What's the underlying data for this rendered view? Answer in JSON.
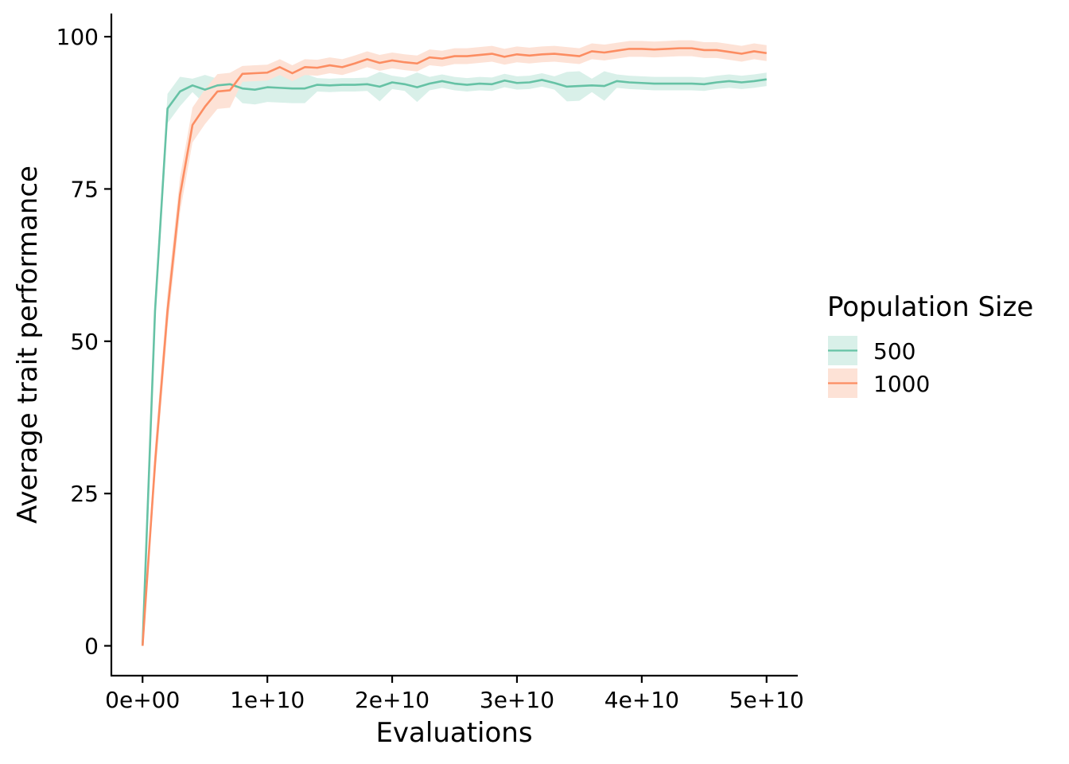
{
  "chart_data": {
    "type": "line",
    "title": "",
    "xlabel": "Evaluations",
    "ylabel": "Average trait performance",
    "xlim": [
      -2500000000,
      52500000000
    ],
    "ylim": [
      -4.9,
      103.8
    ],
    "x_ticks": [
      0,
      10000000000,
      20000000000,
      30000000000,
      40000000000,
      50000000000
    ],
    "x_tick_labels": [
      "0e+00",
      "1e+10",
      "2e+10",
      "3e+10",
      "4e+10",
      "5e+10"
    ],
    "y_ticks": [
      0,
      25,
      50,
      75,
      100
    ],
    "y_tick_labels": [
      "0",
      "25",
      "50",
      "75",
      "100"
    ],
    "grid": false,
    "legend": {
      "title": "Population Size",
      "position": "right"
    },
    "x": [
      0,
      1000000000,
      2000000000,
      3000000000,
      4000000000,
      5000000000,
      6000000000,
      7000000000,
      8000000000,
      9000000000,
      10000000000,
      11000000000,
      12000000000,
      13000000000,
      14000000000,
      15000000000,
      16000000000,
      17000000000,
      18000000000,
      19000000000,
      20000000000,
      21000000000,
      22000000000,
      23000000000,
      24000000000,
      25000000000,
      26000000000,
      27000000000,
      28000000000,
      29000000000,
      30000000000,
      31000000000,
      32000000000,
      33000000000,
      34000000000,
      35000000000,
      36000000000,
      37000000000,
      38000000000,
      39000000000,
      40000000000,
      41000000000,
      42000000000,
      43000000000,
      44000000000,
      45000000000,
      46000000000,
      47000000000,
      48000000000,
      49000000000,
      50000000000
    ],
    "series": [
      {
        "name": "500",
        "color": "#66c2a5",
        "values": [
          0,
          55,
          88.2,
          91,
          92,
          91.3,
          92,
          92.2,
          91.5,
          91.3,
          91.7,
          91.6,
          91.5,
          91.5,
          92.1,
          92,
          92.1,
          92.1,
          92.2,
          91.8,
          92.5,
          92.2,
          91.7,
          92.3,
          92.7,
          92.3,
          92.1,
          92.3,
          92.2,
          92.8,
          92.4,
          92.5,
          92.9,
          92.4,
          91.8,
          91.9,
          92,
          91.9,
          92.7,
          92.5,
          92.4,
          92.3,
          92.3,
          92.3,
          92.3,
          92.2,
          92.5,
          92.7,
          92.5,
          92.7,
          93
        ],
        "ribbon_halfwidth": 1.1
      },
      {
        "name": "1000",
        "color": "#fc8d62",
        "values": [
          0,
          30,
          55,
          74,
          85.5,
          88.5,
          91,
          91.2,
          93.9,
          94,
          94.1,
          95,
          94,
          95,
          94.9,
          95.3,
          95,
          95.6,
          96.3,
          95.7,
          96.1,
          95.8,
          95.6,
          96.6,
          96.4,
          96.8,
          96.8,
          97,
          97.2,
          96.7,
          97.1,
          96.9,
          97.1,
          97.2,
          97,
          96.8,
          97.6,
          97.4,
          97.7,
          98,
          98,
          97.9,
          98,
          98.1,
          98.1,
          97.8,
          97.8,
          97.5,
          97.2,
          97.6,
          97.3
        ],
        "ribbon_halfwidth": 1.3
      }
    ]
  },
  "colors": {
    "series_500": "#66c2a5",
    "series_1000": "#fc8d62",
    "ribbon_500": "#d9f0e9",
    "ribbon_1000": "#fde2d6"
  }
}
